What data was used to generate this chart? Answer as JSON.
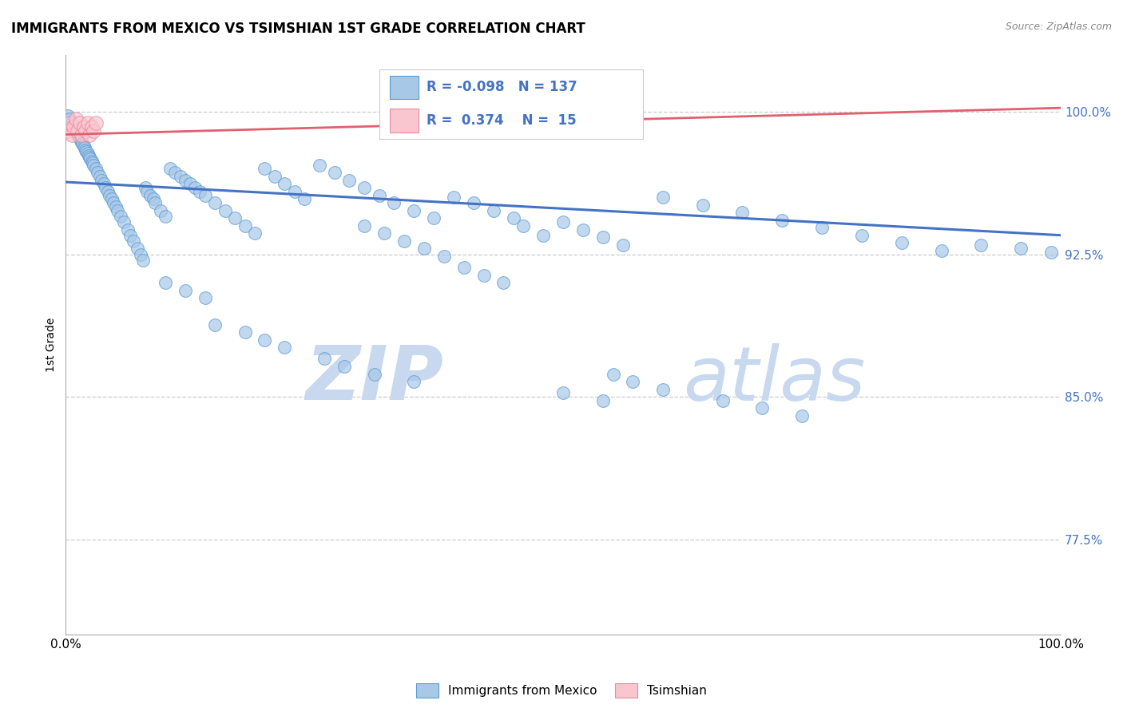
{
  "title": "IMMIGRANTS FROM MEXICO VS TSIMSHIAN 1ST GRADE CORRELATION CHART",
  "source": "Source: ZipAtlas.com",
  "ylabel": "1st Grade",
  "xlim": [
    0.0,
    1.0
  ],
  "ylim": [
    0.725,
    1.03
  ],
  "yticks": [
    0.775,
    0.85,
    0.925,
    1.0
  ],
  "ytick_labels": [
    "77.5%",
    "85.0%",
    "92.5%",
    "100.0%"
  ],
  "xtick_labels": [
    "0.0%",
    "100.0%"
  ],
  "xticks": [
    0.0,
    1.0
  ],
  "legend_r_blue": "-0.098",
  "legend_n_blue": "137",
  "legend_r_pink": "0.374",
  "legend_n_pink": "15",
  "blue_color": "#a8c8e8",
  "blue_edge_color": "#5b9bd5",
  "blue_line_color": "#4472c4",
  "pink_color": "#f9c6d0",
  "pink_edge_color": "#e88a9a",
  "pink_line_color": "#e06070",
  "tick_color": "#4472c4",
  "blue_scatter_x": [
    0.002,
    0.004,
    0.006,
    0.007,
    0.008,
    0.009,
    0.01,
    0.011,
    0.012,
    0.013,
    0.014,
    0.015,
    0.016,
    0.017,
    0.018,
    0.019,
    0.02,
    0.021,
    0.022,
    0.023,
    0.024,
    0.025,
    0.026,
    0.027,
    0.028,
    0.03,
    0.032,
    0.034,
    0.036,
    0.038,
    0.04,
    0.042,
    0.044,
    0.046,
    0.048,
    0.05,
    0.052,
    0.055,
    0.058,
    0.062,
    0.065,
    0.068,
    0.072,
    0.075,
    0.078,
    0.08,
    0.082,
    0.085,
    0.088,
    0.09,
    0.095,
    0.1,
    0.105,
    0.11,
    0.115,
    0.12,
    0.125,
    0.13,
    0.135,
    0.14,
    0.15,
    0.16,
    0.17,
    0.18,
    0.19,
    0.2,
    0.21,
    0.22,
    0.23,
    0.24,
    0.255,
    0.27,
    0.285,
    0.3,
    0.315,
    0.33,
    0.35,
    0.37,
    0.39,
    0.41,
    0.43,
    0.45,
    0.46,
    0.48,
    0.5,
    0.52,
    0.54,
    0.56,
    0.6,
    0.64,
    0.68,
    0.72,
    0.76,
    0.8,
    0.84,
    0.88,
    0.5,
    0.54,
    0.92,
    0.96,
    0.99,
    0.3,
    0.32,
    0.34,
    0.36,
    0.38,
    0.15,
    0.18,
    0.2,
    0.22,
    0.26,
    0.28,
    0.31,
    0.35,
    0.1,
    0.12,
    0.14,
    0.4,
    0.42,
    0.44,
    0.55,
    0.57,
    0.6,
    0.66,
    0.7,
    0.74
  ],
  "blue_scatter_y": [
    0.998,
    0.996,
    0.994,
    0.993,
    0.992,
    0.991,
    0.99,
    0.989,
    0.988,
    0.987,
    0.986,
    0.985,
    0.984,
    0.983,
    0.982,
    0.981,
    0.98,
    0.979,
    0.978,
    0.977,
    0.976,
    0.975,
    0.974,
    0.973,
    0.972,
    0.97,
    0.968,
    0.966,
    0.964,
    0.962,
    0.96,
    0.958,
    0.956,
    0.954,
    0.952,
    0.95,
    0.948,
    0.945,
    0.942,
    0.938,
    0.935,
    0.932,
    0.928,
    0.925,
    0.922,
    0.96,
    0.958,
    0.956,
    0.954,
    0.952,
    0.948,
    0.945,
    0.97,
    0.968,
    0.966,
    0.964,
    0.962,
    0.96,
    0.958,
    0.956,
    0.952,
    0.948,
    0.944,
    0.94,
    0.936,
    0.97,
    0.966,
    0.962,
    0.958,
    0.954,
    0.972,
    0.968,
    0.964,
    0.96,
    0.956,
    0.952,
    0.948,
    0.944,
    0.955,
    0.952,
    0.948,
    0.944,
    0.94,
    0.935,
    0.942,
    0.938,
    0.934,
    0.93,
    0.955,
    0.951,
    0.947,
    0.943,
    0.939,
    0.935,
    0.931,
    0.927,
    0.852,
    0.848,
    0.93,
    0.928,
    0.926,
    0.94,
    0.936,
    0.932,
    0.928,
    0.924,
    0.888,
    0.884,
    0.88,
    0.876,
    0.87,
    0.866,
    0.862,
    0.858,
    0.91,
    0.906,
    0.902,
    0.918,
    0.914,
    0.91,
    0.862,
    0.858,
    0.854,
    0.848,
    0.844,
    0.84
  ],
  "pink_scatter_x": [
    0.002,
    0.004,
    0.006,
    0.008,
    0.01,
    0.012,
    0.014,
    0.016,
    0.018,
    0.02,
    0.022,
    0.024,
    0.026,
    0.028,
    0.03
  ],
  "pink_scatter_y": [
    0.99,
    0.994,
    0.988,
    0.992,
    0.996,
    0.99,
    0.994,
    0.988,
    0.992,
    0.99,
    0.994,
    0.988,
    0.992,
    0.99,
    0.994
  ],
  "blue_trend_x": [
    0.0,
    1.0
  ],
  "blue_trend_y": [
    0.963,
    0.935
  ],
  "pink_trend_x": [
    0.0,
    1.0
  ],
  "pink_trend_y": [
    0.988,
    1.002
  ],
  "watermark_zip": "ZIP",
  "watermark_atlas": "atlas",
  "watermark_color": "#c8d8ee",
  "grid_color": "#cccccc",
  "bg_color": "#ffffff"
}
